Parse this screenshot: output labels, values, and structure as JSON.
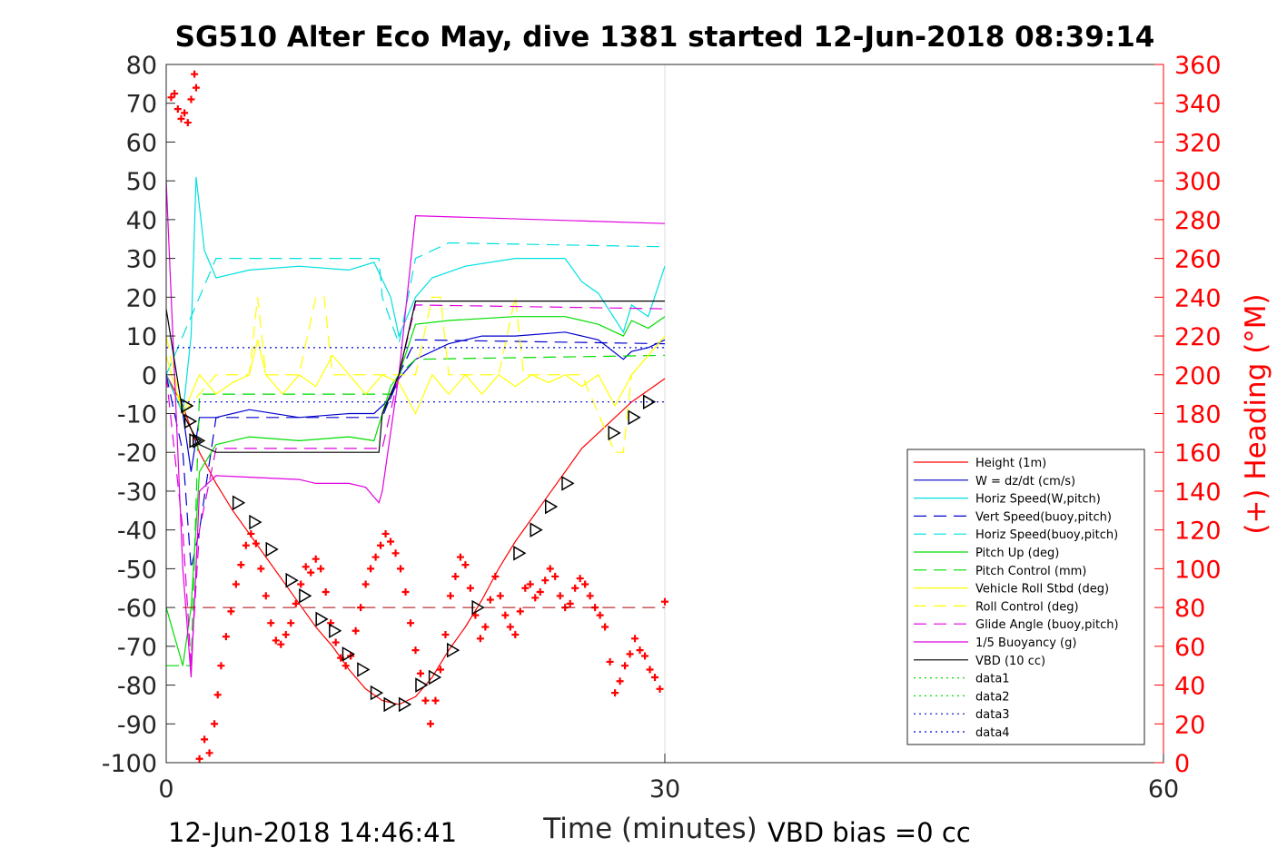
{
  "chart_data": {
    "type": "line",
    "title": "SG510 Alter Eco May, dive 1381 started 12-Jun-2018 08:39:14",
    "xlabel": "Time (minutes)",
    "ylabel_right": "(+) Heading (°M)",
    "xlim": [
      0,
      60
    ],
    "ylim": [
      -100,
      80
    ],
    "ylim_right": [
      0,
      360
    ],
    "x_ticks": [
      "0",
      "30",
      "60"
    ],
    "y_ticks": [
      "80",
      "70",
      "60",
      "50",
      "40",
      "30",
      "20",
      "10",
      "0",
      "-10",
      "-20",
      "-30",
      "-40",
      "-50",
      "-60",
      "-70",
      "-80",
      "-90",
      "-100"
    ],
    "y_ticks_right": [
      "360",
      "340",
      "320",
      "300",
      "280",
      "260",
      "240",
      "220",
      "200",
      "180",
      "160",
      "140",
      "120",
      "100",
      "80",
      "60",
      "40",
      "20",
      "0"
    ],
    "grid": "x only",
    "legend_position": "lower-right",
    "series": [
      {
        "name": "Height (1m)",
        "color": "#ff0000",
        "style": "solid",
        "x": [
          0,
          1,
          2,
          3,
          4,
          5,
          6,
          7,
          8,
          9,
          10,
          11,
          12,
          13,
          14,
          15,
          16,
          17,
          18,
          19,
          20,
          21,
          22,
          23,
          24,
          25,
          26,
          27,
          28,
          29,
          30
        ],
        "y": [
          0,
          -8,
          -20,
          -28,
          -35,
          -41,
          -47,
          -53,
          -59,
          -65,
          -70,
          -76,
          -81,
          -84,
          -85,
          -83,
          -78,
          -71,
          -65,
          -58,
          -50,
          -43,
          -37,
          -31,
          -25,
          -19,
          -15,
          -11,
          -7,
          -4,
          -1
        ]
      },
      {
        "name": "W = dz/dt (cm/s)",
        "color": "#0000cc",
        "style": "solid",
        "x": [
          0,
          1,
          1.5,
          2,
          3,
          5,
          8,
          11,
          12.5,
          13.5,
          14,
          15,
          17,
          19,
          21,
          24,
          26,
          27.5,
          28,
          29,
          30
        ],
        "y": [
          0,
          -10,
          -25,
          -11,
          -11,
          -9,
          -11,
          -10,
          -10,
          -6,
          -1,
          4,
          8,
          10,
          10,
          11,
          9,
          4,
          6,
          7,
          9
        ]
      },
      {
        "name": "Horiz Speed(W,pitch)",
        "color": "#00e0e0",
        "style": "solid",
        "x": [
          0,
          1,
          1.5,
          1.8,
          2.3,
          3,
          5,
          8,
          11,
          12.5,
          13.5,
          14,
          15,
          16,
          18,
          21,
          24,
          25,
          26,
          27.5,
          28,
          29,
          30
        ],
        "y": [
          0,
          -10,
          10,
          51,
          32,
          25,
          27,
          28,
          27,
          29,
          20,
          10,
          20,
          25,
          28,
          30,
          30,
          24,
          21,
          11,
          18,
          15,
          28
        ]
      },
      {
        "name": "Vert Speed(buoy,pitch)",
        "color": "#0000cc",
        "style": "dashed",
        "x": [
          0,
          1,
          1.5,
          2,
          3,
          12.8,
          13,
          14,
          15,
          30
        ],
        "y": [
          0,
          -20,
          -50,
          -40,
          -11,
          -11,
          -11,
          0,
          9,
          8
        ]
      },
      {
        "name": "Horiz Speed(buoy,pitch)",
        "color": "#00e0e0",
        "style": "dashed",
        "x": [
          0,
          1,
          2,
          3,
          12.8,
          13,
          14,
          15,
          17,
          30
        ],
        "y": [
          0,
          10,
          20,
          30,
          30,
          20,
          8,
          30,
          34,
          33
        ]
      },
      {
        "name": "Pitch Up (deg)",
        "color": "#00dd00",
        "style": "solid",
        "x": [
          0,
          1,
          1.5,
          2,
          3,
          5,
          8,
          11,
          12.5,
          13.5,
          14,
          15,
          17,
          21,
          24,
          26,
          27.5,
          28,
          29,
          30
        ],
        "y": [
          -60,
          -75,
          -60,
          -25,
          -18,
          -16,
          -17,
          -16,
          -17,
          -3,
          0,
          13,
          14,
          15,
          15,
          13,
          10,
          14,
          12,
          15
        ]
      },
      {
        "name": "Pitch Control (mm)",
        "color": "#00dd00",
        "style": "dashed",
        "x": [
          0,
          1.5,
          2,
          13.5,
          14,
          15,
          30
        ],
        "y": [
          -75,
          -75,
          -5,
          -5,
          0,
          4,
          5
        ]
      },
      {
        "name": "Vehicle Roll Stbd (deg)",
        "color": "#ffff00",
        "style": "solid",
        "x": [
          0,
          1,
          2,
          3,
          4,
          5,
          5.5,
          6,
          7,
          8,
          9,
          10,
          11,
          12,
          13,
          14,
          15,
          16,
          17,
          18,
          19,
          20,
          21,
          22,
          23,
          24,
          25,
          26,
          27,
          28,
          29,
          30
        ],
        "y": [
          5,
          -10,
          0,
          -5,
          -2,
          0,
          9,
          0,
          -5,
          0,
          -3,
          5,
          0,
          -5,
          0,
          -2,
          -10,
          0,
          -5,
          0,
          -5,
          0,
          -3,
          0,
          -2,
          0,
          -3,
          0,
          -8,
          0,
          5,
          10
        ]
      },
      {
        "name": "Roll Control (deg)",
        "color": "#ffff00",
        "style": "dashed",
        "x": [
          0,
          1,
          3,
          5,
          5.5,
          6,
          8,
          9,
          9.5,
          10,
          12,
          15,
          16,
          16.5,
          17,
          20,
          21,
          21.5,
          22,
          25,
          27,
          27.5,
          28,
          30
        ],
        "y": [
          10,
          -10,
          0,
          0,
          20,
          0,
          0,
          20,
          20,
          0,
          0,
          0,
          20,
          20,
          0,
          0,
          20,
          0,
          0,
          0,
          -20,
          -20,
          0,
          10
        ]
      },
      {
        "name": "Glide Angle (buoy,pitch)",
        "color": "#e000e0",
        "style": "dashed",
        "x": [
          0,
          1,
          1.5,
          2,
          3,
          12.8,
          13,
          14,
          15,
          30
        ],
        "y": [
          0,
          -40,
          -75,
          -40,
          -19,
          -19,
          -19,
          0,
          18,
          17
        ]
      },
      {
        "name": "1/5 Buoyancy (g)",
        "color": "#e000e0",
        "style": "solid",
        "x": [
          0,
          1,
          1.5,
          2,
          3,
          8,
          9,
          11,
          12,
          12.8,
          13,
          14,
          15,
          30
        ],
        "y": [
          50,
          -50,
          -78,
          -30,
          -26,
          -27,
          -28,
          -28,
          -29,
          -33,
          -30,
          0,
          41,
          39
        ]
      },
      {
        "name": "VBD (10 cc)",
        "color": "#000000",
        "style": "solid",
        "x": [
          0,
          1,
          2,
          3,
          12.8,
          13,
          14,
          15,
          30
        ],
        "y": [
          17,
          -10,
          -18,
          -20,
          -20,
          -10,
          0,
          19,
          19
        ]
      },
      {
        "name": "data1",
        "color": "#00dd00",
        "style": "dotted",
        "x": [],
        "y": []
      },
      {
        "name": "data2",
        "color": "#00dd00",
        "style": "dotted",
        "x": [],
        "y": []
      },
      {
        "name": "data3",
        "color": "#0000cc",
        "style": "dotted",
        "x": [
          0,
          30
        ],
        "y": [
          7,
          7
        ]
      },
      {
        "name": "data4",
        "color": "#0000cc",
        "style": "dotted",
        "x": [
          0,
          30
        ],
        "y": [
          -7,
          -7
        ]
      }
    ],
    "heading": {
      "axis": "right",
      "color": "#ff0000",
      "marker": "+",
      "x": [
        0.3,
        0.5,
        0.7,
        0.9,
        1.1,
        1.3,
        1.5,
        1.7,
        1.8,
        2.0,
        2.3,
        2.6,
        2.9,
        3.1,
        3.3,
        3.6,
        3.9,
        4.2,
        4.5,
        4.8,
        5.1,
        5.4,
        5.7,
        6.0,
        6.3,
        6.6,
        6.9,
        7.2,
        7.5,
        7.8,
        8.1,
        8.4,
        8.7,
        9.0,
        9.3,
        9.6,
        9.9,
        10.2,
        10.5,
        10.8,
        11.1,
        11.4,
        11.7,
        12.0,
        12.3,
        12.6,
        12.9,
        13.2,
        13.5,
        13.8,
        14.1,
        14.4,
        14.7,
        15.0,
        15.3,
        15.6,
        15.9,
        16.2,
        16.5,
        16.8,
        17.1,
        17.4,
        17.7,
        18.0,
        18.3,
        18.6,
        18.9,
        19.2,
        19.5,
        19.8,
        20.1,
        20.4,
        20.7,
        21.0,
        21.3,
        21.6,
        21.9,
        22.2,
        22.5,
        22.8,
        23.1,
        23.4,
        23.7,
        24.0,
        24.3,
        24.6,
        24.9,
        25.2,
        25.5,
        25.8,
        26.1,
        26.4,
        26.7,
        27.0,
        27.3,
        27.6,
        27.9,
        28.2,
        28.5,
        28.8,
        29.1,
        29.4,
        29.7,
        30.0
      ],
      "y": [
        343,
        345,
        337,
        332,
        335,
        330,
        342,
        355,
        348,
        2,
        12,
        5,
        20,
        35,
        50,
        65,
        78,
        92,
        102,
        112,
        118,
        113,
        100,
        86,
        72,
        63,
        61,
        66,
        72,
        82,
        92,
        101,
        98,
        105,
        100,
        88,
        72,
        62,
        54,
        50,
        55,
        68,
        80,
        92,
        100,
        106,
        112,
        118,
        114,
        108,
        100,
        88,
        72,
        58,
        46,
        32,
        20,
        32,
        48,
        66,
        86,
        96,
        106,
        102,
        90,
        76,
        64,
        70,
        84,
        96,
        86,
        76,
        70,
        66,
        78,
        90,
        92,
        85,
        88,
        94,
        100,
        96,
        86,
        80,
        82,
        90,
        95,
        92,
        86,
        80,
        76,
        70,
        52,
        36,
        42,
        50,
        56,
        64,
        58,
        55,
        48,
        44,
        38,
        83
      ]
    },
    "triangles": {
      "x": [
        1.2,
        1.4,
        1.7,
        1.9,
        4.3,
        5.3,
        6.3,
        7.5,
        8.3,
        9.3,
        10.1,
        10.9,
        11.8,
        12.6,
        13.4,
        14.3,
        15.3,
        16.1,
        17.2,
        18.7,
        21.2,
        22.2,
        23.1,
        24.1,
        26.9,
        28.1,
        29.0
      ],
      "y": [
        -8,
        -12,
        -17,
        -17,
        -33,
        -38,
        -45,
        -53,
        -57,
        -63,
        -66,
        -72,
        -76,
        -82,
        -85,
        -85,
        -80,
        -78,
        -71,
        -60,
        -46,
        -40,
        -34,
        -28,
        -15,
        -11,
        -7
      ]
    }
  },
  "footer": {
    "timestamp": "12-Jun-2018 14:46:41",
    "vbd_bias": "VBD bias =0 cc"
  }
}
